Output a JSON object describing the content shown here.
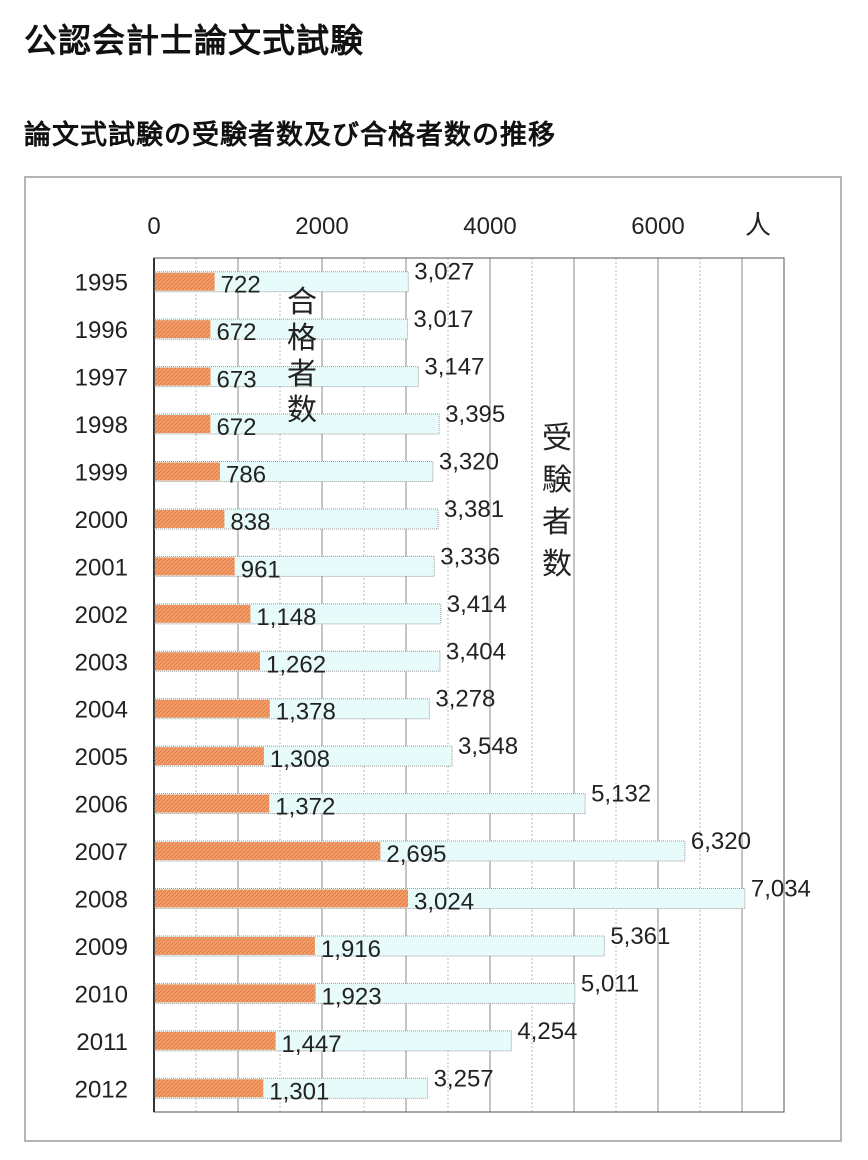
{
  "page": {
    "title": "公認会計士論文式試験",
    "subtitle": "論文式試験の受験者数及び合格者数の推移"
  },
  "chart_data": {
    "type": "bar",
    "orientation": "horizontal",
    "unit_label": "人",
    "xlim": [
      0,
      7500
    ],
    "xticks": [
      0,
      2000,
      4000,
      6000
    ],
    "grid": true,
    "categories": [
      "1995",
      "1996",
      "1997",
      "1998",
      "1999",
      "2000",
      "2001",
      "2002",
      "2003",
      "2004",
      "2005",
      "2006",
      "2007",
      "2008",
      "2009",
      "2010",
      "2011",
      "2012"
    ],
    "series": [
      {
        "name": "受験者数",
        "color": "#e8fbfb",
        "values": [
          3027,
          3017,
          3147,
          3395,
          3320,
          3381,
          3336,
          3414,
          3404,
          3278,
          3548,
          5132,
          6320,
          7034,
          5361,
          5011,
          4254,
          3257
        ],
        "labels": [
          "3,027",
          "3,017",
          "3,147",
          "3,395",
          "3,320",
          "3,381",
          "3,336",
          "3,414",
          "3,404",
          "3,278",
          "3,548",
          "5,132",
          "6,320",
          "7,034",
          "5,361",
          "5,011",
          "4,254",
          "3,257"
        ]
      },
      {
        "name": "合格者数",
        "color": "#f4a06e",
        "values": [
          722,
          672,
          673,
          672,
          786,
          838,
          961,
          1148,
          1262,
          1378,
          1308,
          1372,
          2695,
          3024,
          1916,
          1923,
          1447,
          1301
        ],
        "labels": [
          "722",
          "672",
          "673",
          "672",
          "786",
          "838",
          "961",
          "1,148",
          "1,262",
          "1,378",
          "1,308",
          "1,372",
          "2,695",
          "3,024",
          "1,916",
          "1,923",
          "1,447",
          "1,301"
        ]
      }
    ]
  }
}
